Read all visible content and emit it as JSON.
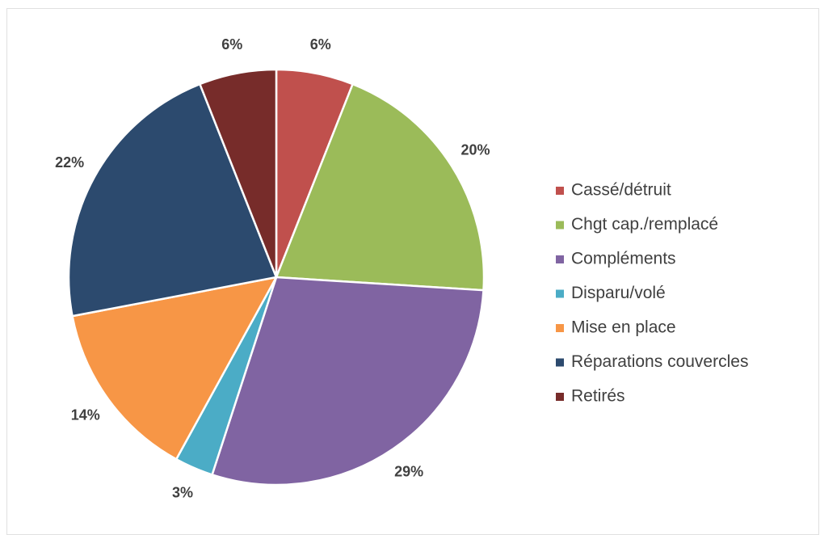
{
  "chart_data": {
    "type": "pie",
    "categories": [
      "Cassé/détruit",
      "Chgt cap./remplacé",
      "Compléments",
      "Disparu/volé",
      "Mise en place",
      "Réparations couvercles",
      "Retirés"
    ],
    "values": [
      6,
      20,
      29,
      3,
      14,
      22,
      6
    ],
    "value_labels": [
      "6%",
      "20%",
      "29%",
      "3%",
      "14%",
      "22%",
      "6%"
    ],
    "colors": [
      "#c0504d",
      "#9bbb59",
      "#8064a2",
      "#4bacc6",
      "#f79646",
      "#2c4a6e",
      "#772c2a"
    ],
    "legend": "right"
  }
}
